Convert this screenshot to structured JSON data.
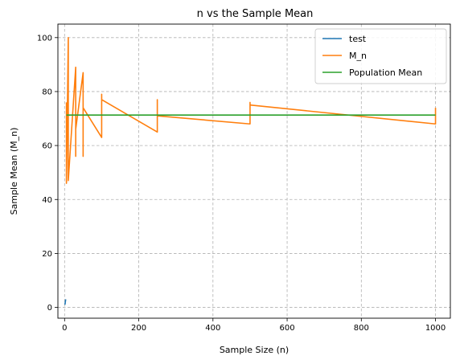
{
  "chart_data": {
    "type": "line",
    "title": "n vs the Sample Mean",
    "xlabel": "Sample Size (n)",
    "ylabel": "Sample Mean (M_n)",
    "xlim": [
      -18,
      1040
    ],
    "ylim": [
      -4,
      105
    ],
    "xticks": [
      0,
      200,
      400,
      600,
      800,
      1000
    ],
    "yticks": [
      0,
      20,
      40,
      60,
      80,
      100
    ],
    "grid": true,
    "grid_style": "dashed",
    "legend_position": "upper-right",
    "series": [
      {
        "name": "test",
        "color": "#1f77b4",
        "x": [
          1,
          2,
          3
        ],
        "y": [
          1,
          2,
          3
        ]
      },
      {
        "name": "M_n",
        "color": "#ff7f0e",
        "x": [
          5,
          5,
          10,
          10,
          10,
          30,
          30,
          30,
          50,
          50,
          50,
          100,
          100,
          100,
          250,
          250,
          250,
          500,
          500,
          500,
          1000,
          1000
        ],
        "y": [
          76,
          46,
          100,
          76,
          47,
          89,
          56,
          66,
          87,
          56,
          74,
          63,
          79,
          77,
          65,
          77,
          71,
          68,
          76,
          75,
          68,
          74
        ]
      },
      {
        "name": "Population Mean",
        "color": "#2ca02c",
        "x": [
          5,
          1000
        ],
        "y": [
          71.3,
          71.3
        ]
      }
    ]
  }
}
